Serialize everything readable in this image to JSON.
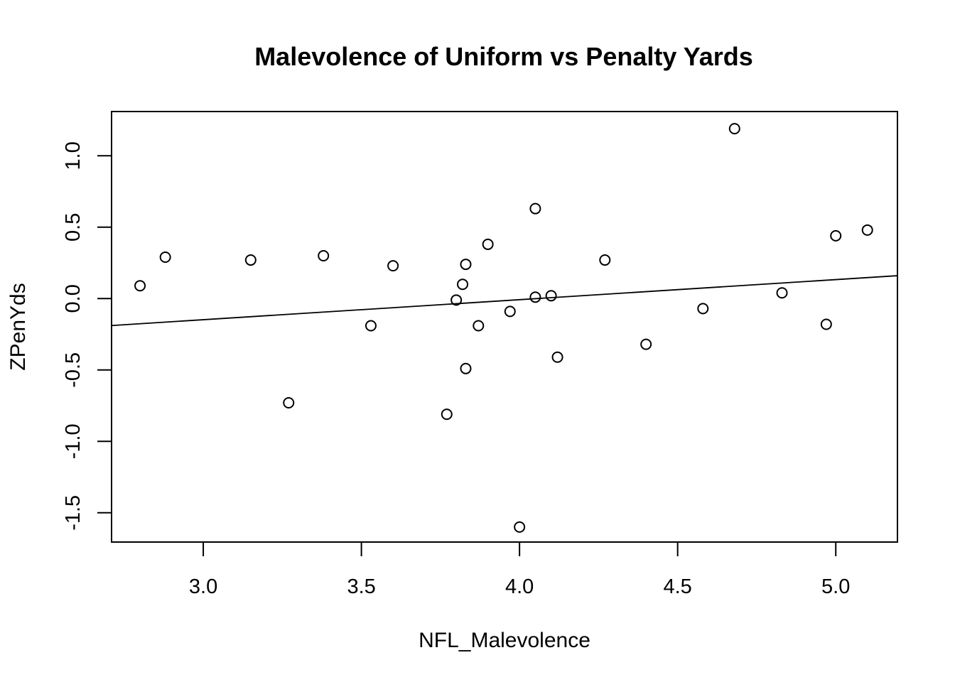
{
  "chart_data": {
    "type": "scatter",
    "title": "Malevolence of Uniform vs Penalty Yards",
    "xlabel": "NFL_Malevolence",
    "ylabel": "ZPenYds",
    "xlim": [
      2.71,
      5.195
    ],
    "ylim": [
      -1.705,
      1.31
    ],
    "x_ticks": [
      3.0,
      3.5,
      4.0,
      4.5,
      5.0
    ],
    "x_tick_labels": [
      "3.0",
      "3.5",
      "4.0",
      "4.5",
      "5.0"
    ],
    "y_ticks": [
      -1.5,
      -1.0,
      -0.5,
      0.0,
      0.5,
      1.0
    ],
    "y_tick_labels": [
      "-1.5",
      "-1.0",
      "-0.5",
      "0.0",
      "0.5",
      "1.0"
    ],
    "grid": false,
    "legend": "none",
    "points": [
      {
        "x": 2.8,
        "y": 0.09
      },
      {
        "x": 2.88,
        "y": 0.29
      },
      {
        "x": 3.15,
        "y": 0.27
      },
      {
        "x": 3.27,
        "y": -0.73
      },
      {
        "x": 3.38,
        "y": 0.3
      },
      {
        "x": 3.53,
        "y": -0.19
      },
      {
        "x": 3.6,
        "y": 0.23
      },
      {
        "x": 3.77,
        "y": -0.81
      },
      {
        "x": 3.8,
        "y": -0.01
      },
      {
        "x": 3.82,
        "y": 0.1
      },
      {
        "x": 3.83,
        "y": 0.24
      },
      {
        "x": 3.83,
        "y": -0.49
      },
      {
        "x": 3.87,
        "y": -0.19
      },
      {
        "x": 3.9,
        "y": 0.38
      },
      {
        "x": 3.97,
        "y": -0.09
      },
      {
        "x": 4.0,
        "y": -1.6
      },
      {
        "x": 4.05,
        "y": 0.63
      },
      {
        "x": 4.05,
        "y": 0.01
      },
      {
        "x": 4.1,
        "y": 0.02
      },
      {
        "x": 4.12,
        "y": -0.41
      },
      {
        "x": 4.27,
        "y": 0.27
      },
      {
        "x": 4.4,
        "y": -0.32
      },
      {
        "x": 4.58,
        "y": -0.07
      },
      {
        "x": 4.68,
        "y": 1.19
      },
      {
        "x": 4.83,
        "y": 0.04
      },
      {
        "x": 4.97,
        "y": -0.18
      },
      {
        "x": 5.0,
        "y": 0.44
      },
      {
        "x": 5.1,
        "y": 0.48
      }
    ],
    "regression_line": {
      "intercept": -0.5695,
      "slope": 0.1405
    }
  }
}
